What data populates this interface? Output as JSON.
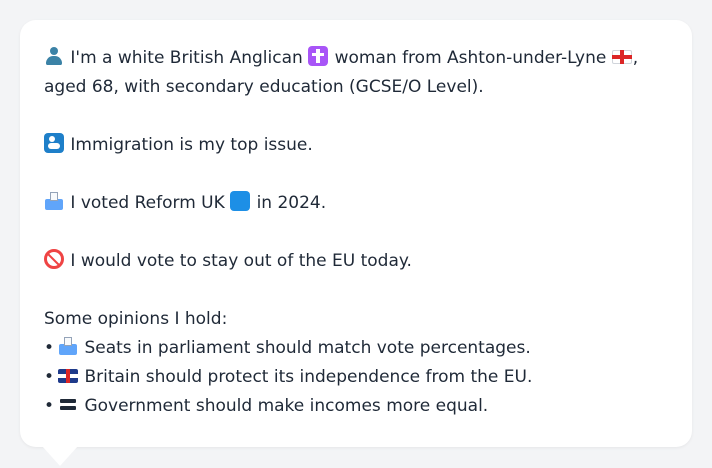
{
  "profile": {
    "intro_before_cross": "I'm a white British Anglican",
    "intro_before_flag": "woman from Ashton-under-Lyne",
    "intro_after_flag": ", aged 68, with secondary education (GCSE/O Level).",
    "top_issue": "Immigration is my top issue.",
    "vote_before_square": "I voted Reform UK",
    "vote_after_square": "in 2024.",
    "eu_stance": "I would vote to stay out of the EU today.",
    "opinions_heading": "Some opinions I hold:",
    "bullet_char": "•",
    "opinions": [
      {
        "icon": "ballot-box-icon",
        "text": "Seats in parliament should match vote percentages."
      },
      {
        "icon": "uk-flag-icon",
        "text": "Britain should protect its independence from the EU."
      },
      {
        "icon": "equals-icon",
        "text": "Government should make incomes more equal."
      }
    ]
  },
  "icons": {
    "person": "person-silhouette-icon",
    "religion": "latin-cross-icon",
    "region": "england-flag-icon",
    "issue": "immigration-icon",
    "vote": "ballot-box-icon",
    "party_color": "blue-square-icon",
    "eu": "prohibited-icon"
  },
  "colors": {
    "background": "#f3f4f6",
    "bubble": "#ffffff",
    "text": "#1f2937"
  }
}
